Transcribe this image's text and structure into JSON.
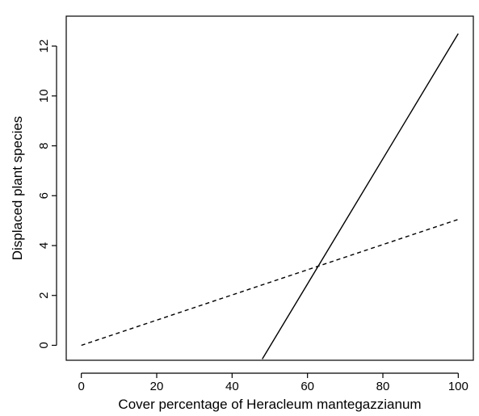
{
  "chart_data": {
    "type": "line",
    "xlabel": "Cover percentage of Heracleum mantegazzianum",
    "ylabel": "Displaced plant species",
    "xlim": [
      -4,
      104
    ],
    "ylim": [
      -0.6,
      13.2
    ],
    "x_ticks": [
      0,
      20,
      40,
      60,
      80,
      100
    ],
    "y_ticks": [
      0,
      2,
      4,
      6,
      8,
      10,
      12
    ],
    "grid": false,
    "series": [
      {
        "style": "solid",
        "x": [
          48,
          100
        ],
        "y": [
          -0.55,
          12.5
        ]
      },
      {
        "style": "dashed",
        "x": [
          0,
          100
        ],
        "y": [
          0,
          5.05
        ]
      }
    ]
  }
}
